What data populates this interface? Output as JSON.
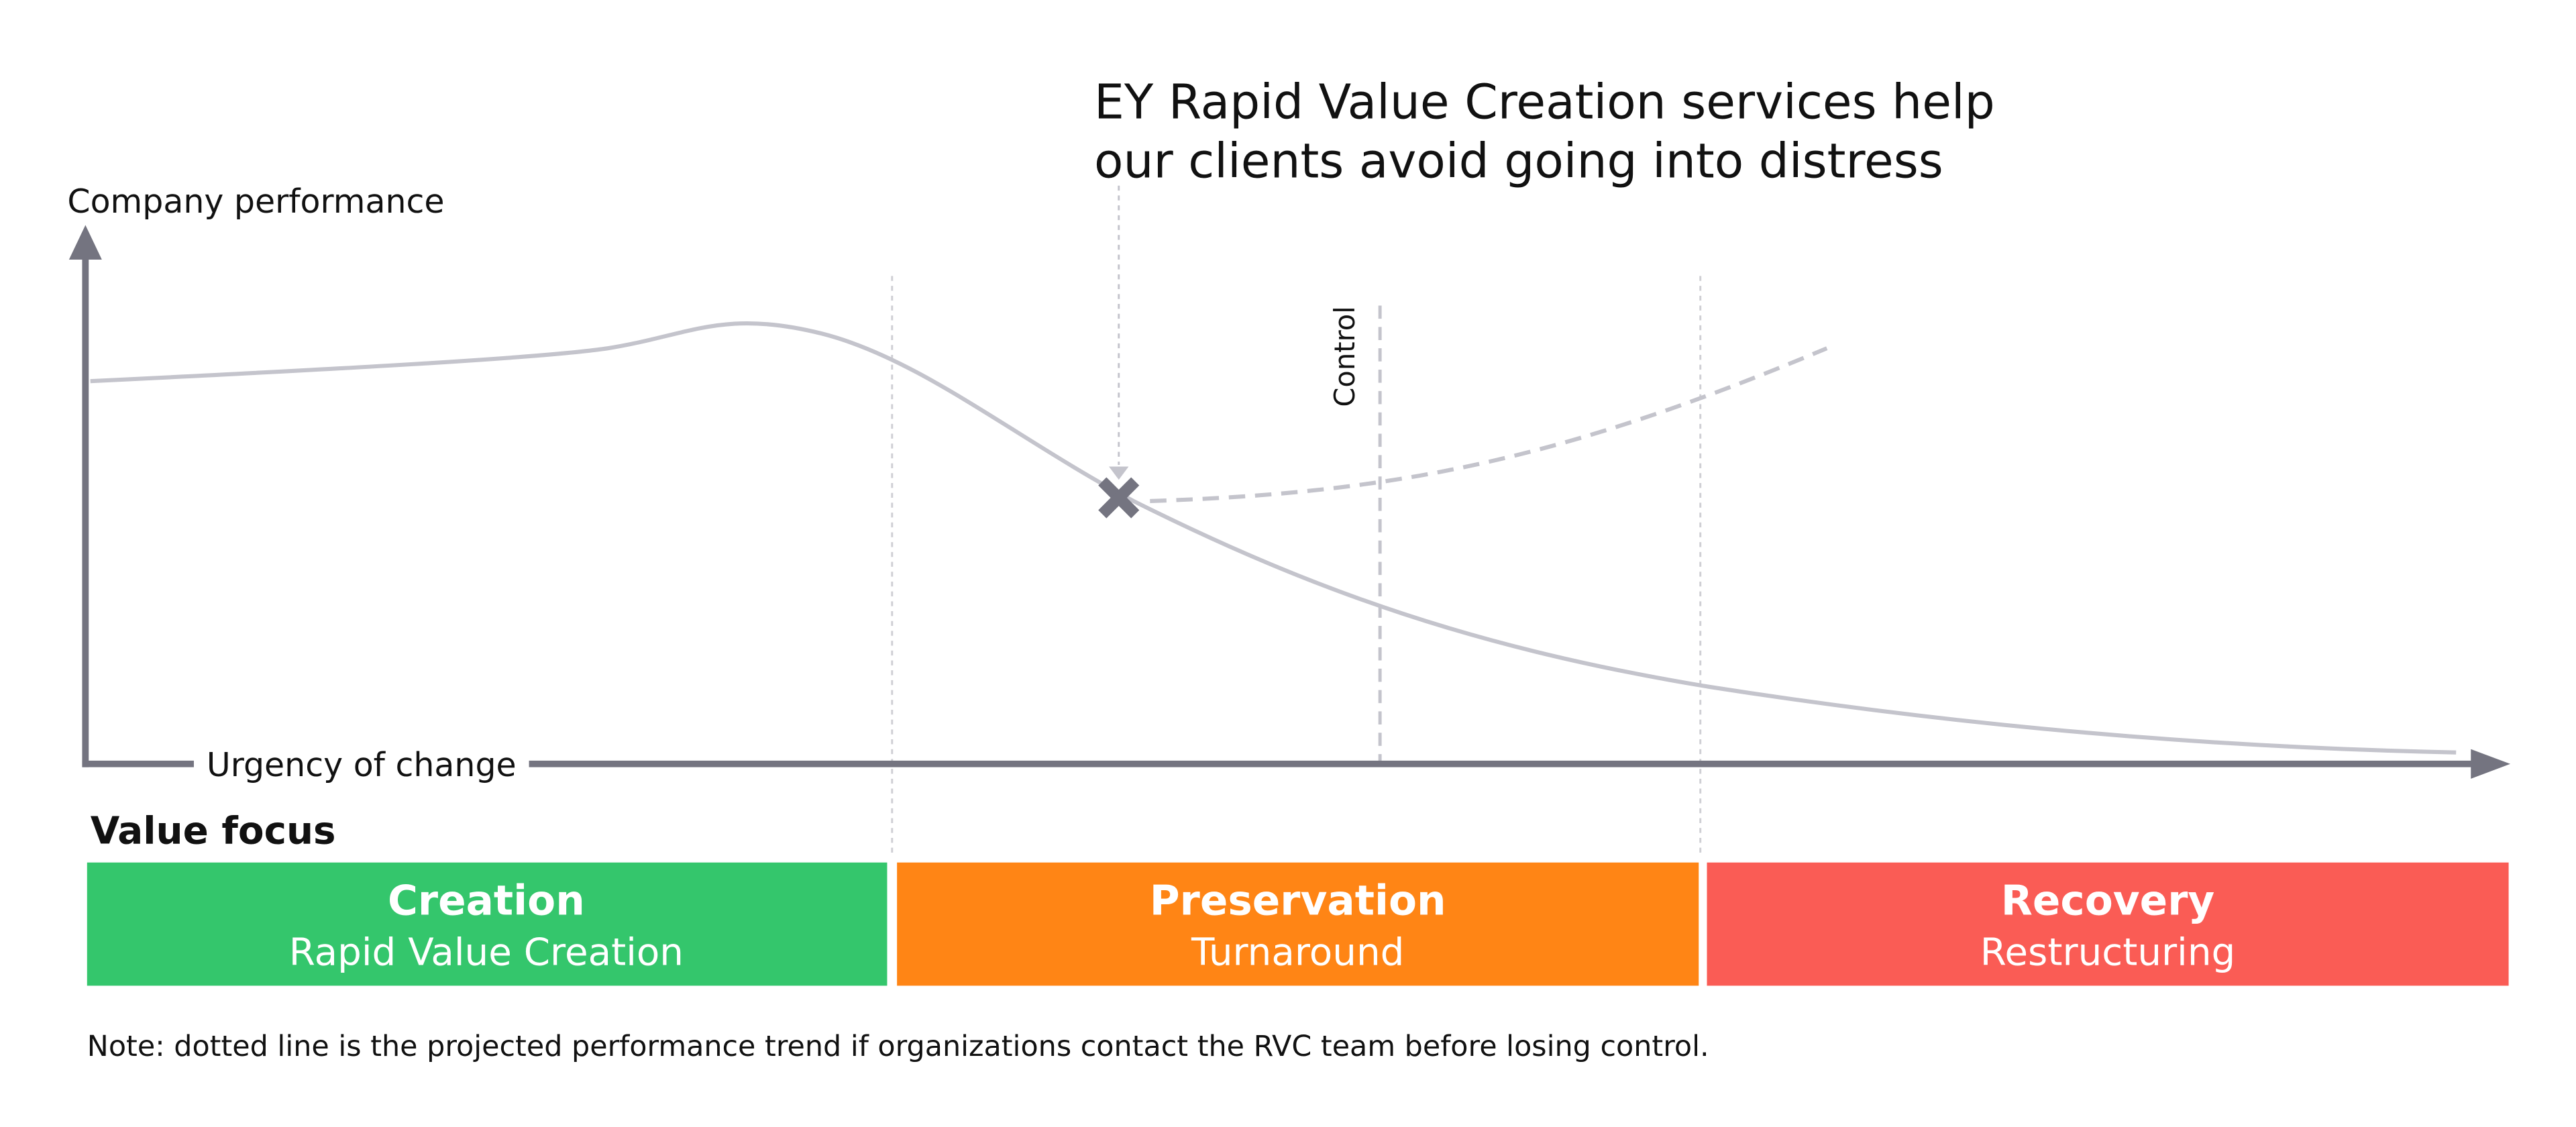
{
  "annotation": {
    "lines": [
      "EY Rapid Value Creation services help",
      "our clients avoid going into distress"
    ]
  },
  "y_axis_label": "Company performance",
  "x_axis_label": "Urgency of change",
  "control_label": "Control",
  "value_focus": {
    "title": "Value focus",
    "phases": [
      {
        "name": "Creation",
        "service": "Rapid Value Creation"
      },
      {
        "name": "Preservation",
        "service": "Turnaround"
      },
      {
        "name": "Recovery",
        "service": "Restructuring"
      }
    ]
  },
  "note": "Note: dotted line is the projected performance trend if organizations contact the RVC team before losing control."
}
